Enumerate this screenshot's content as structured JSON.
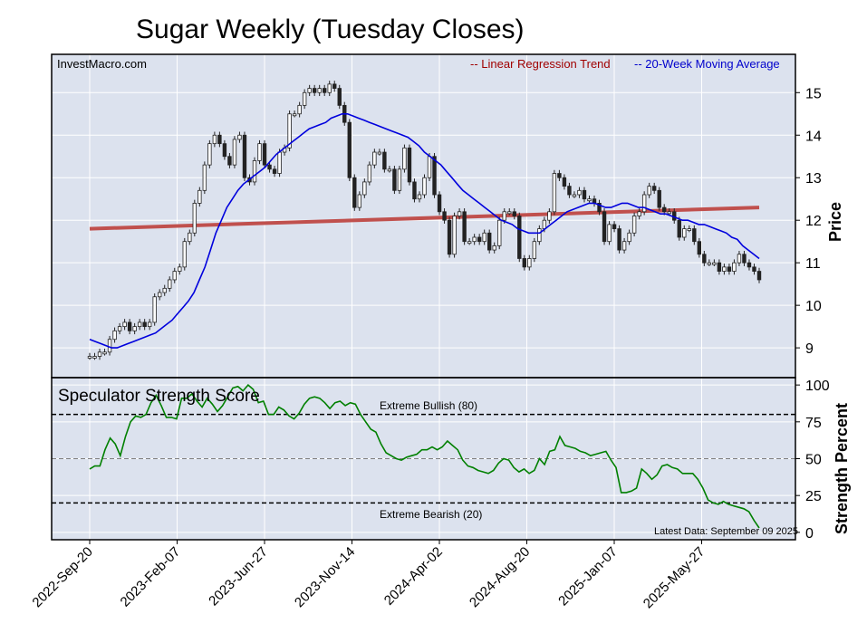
{
  "chart_data": {
    "type": "candlestick",
    "title": "Sugar Weekly (Tuesday Closes)",
    "source": "InvestMacro.com",
    "x_ticks": [
      "2022-Sep-20",
      "2023-Feb-07",
      "2023-Jun-27",
      "2023-Nov-14",
      "2024-Apr-02",
      "2024-Aug-20",
      "2025-Jan-07",
      "2025-May-27"
    ],
    "price_panel": {
      "ylabel": "Price",
      "yticks": [
        9,
        10,
        11,
        12,
        13,
        14,
        15
      ],
      "ylim": [
        8.3,
        15.9
      ],
      "legend": {
        "regression": "-- Linear Regression Trend",
        "moving_average": "-- 20-Week Moving Average"
      },
      "weekly_closes": [
        8.8,
        8.8,
        8.9,
        8.9,
        9.2,
        9.4,
        9.5,
        9.6,
        9.4,
        9.5,
        9.6,
        9.5,
        9.6,
        10.2,
        10.3,
        10.4,
        10.6,
        10.8,
        10.9,
        11.5,
        11.7,
        12.4,
        12.7,
        13.3,
        13.8,
        14.0,
        13.8,
        13.5,
        13.3,
        13.9,
        14.0,
        13.0,
        12.9,
        13.4,
        13.8,
        13.3,
        13.2,
        13.1,
        13.6,
        13.7,
        14.5,
        14.5,
        14.7,
        15.0,
        15.1,
        15.0,
        15.1,
        15.0,
        15.2,
        15.1,
        14.7,
        14.3,
        13.0,
        12.3,
        12.6,
        12.9,
        13.3,
        13.6,
        13.6,
        13.2,
        13.2,
        12.7,
        13.2,
        13.7,
        12.9,
        12.5,
        12.6,
        13.0,
        13.5,
        12.6,
        12.2,
        12.0,
        11.2,
        12.1,
        12.2,
        11.5,
        11.5,
        11.6,
        11.5,
        11.7,
        11.3,
        11.4,
        12.0,
        12.2,
        12.2,
        12.1,
        11.1,
        10.9,
        11.1,
        11.5,
        11.8,
        12.0,
        12.2,
        13.1,
        13.0,
        12.8,
        12.6,
        12.6,
        12.7,
        12.5,
        12.5,
        12.4,
        12.2,
        11.5,
        11.9,
        11.8,
        11.3,
        11.5,
        11.7,
        12.1,
        12.2,
        12.6,
        12.8,
        12.7,
        12.3,
        12.2,
        12.2,
        12.0,
        11.6,
        11.8,
        11.8,
        11.5,
        11.2,
        11.0,
        11.0,
        11.0,
        10.8,
        10.9,
        10.8,
        11.0,
        11.2,
        11.0,
        10.9,
        10.8,
        10.6
      ],
      "moving_average": [
        9.2,
        9.15,
        9.1,
        9.05,
        9.0,
        9.0,
        9.05,
        9.1,
        9.15,
        9.2,
        9.25,
        9.3,
        9.35,
        9.45,
        9.55,
        9.65,
        9.8,
        9.95,
        10.1,
        10.3,
        10.6,
        10.9,
        11.3,
        11.7,
        12.0,
        12.3,
        12.5,
        12.7,
        12.85,
        12.95,
        13.05,
        13.15,
        13.25,
        13.4,
        13.55,
        13.65,
        13.75,
        13.85,
        13.95,
        14.05,
        14.15,
        14.2,
        14.25,
        14.3,
        14.4,
        14.45,
        14.5,
        14.5,
        14.45,
        14.4,
        14.35,
        14.3,
        14.25,
        14.2,
        14.15,
        14.1,
        14.05,
        14.0,
        13.95,
        13.85,
        13.75,
        13.6,
        13.5,
        13.4,
        13.3,
        13.15,
        13.0,
        12.85,
        12.7,
        12.6,
        12.5,
        12.4,
        12.3,
        12.2,
        12.1,
        12.0,
        11.95,
        11.9,
        11.8,
        11.75,
        11.7,
        11.7,
        11.7,
        11.8,
        11.9,
        12.0,
        12.1,
        12.2,
        12.25,
        12.3,
        12.35,
        12.4,
        12.4,
        12.35,
        12.3,
        12.3,
        12.35,
        12.4,
        12.4,
        12.35,
        12.3,
        12.3,
        12.25,
        12.2,
        12.15,
        12.15,
        12.1,
        12.05,
        12.0,
        12.0,
        11.95,
        11.9,
        11.9,
        11.85,
        11.8,
        11.75,
        11.7,
        11.6,
        11.55,
        11.4,
        11.3,
        11.2,
        11.1
      ],
      "regression": {
        "start": 11.8,
        "end": 12.3
      }
    },
    "strength_panel": {
      "title": "Speculator Strength Score",
      "ylabel": "Strength Percent",
      "yticks": [
        0,
        25,
        50,
        75,
        100
      ],
      "ylim": [
        -5,
        105
      ],
      "lines": [
        {
          "value": 80,
          "label": "Extreme Bullish (80)"
        },
        {
          "value": 50,
          "label": ""
        },
        {
          "value": 20,
          "label": "Extreme Bearish (20)"
        }
      ],
      "latest": "Latest Data: September 09 2025",
      "values": [
        43,
        45,
        45,
        56,
        64,
        60,
        52,
        65,
        75,
        79,
        78,
        80,
        88,
        93,
        86,
        78,
        78,
        77,
        91,
        91,
        94,
        89,
        85,
        91,
        87,
        82,
        86,
        92,
        98,
        99,
        96,
        100,
        97,
        88,
        89,
        80,
        80,
        85,
        83,
        79,
        77,
        81,
        87,
        91,
        92,
        91,
        88,
        84,
        88,
        89,
        86,
        88,
        87,
        80,
        75,
        70,
        68,
        60,
        54,
        52,
        50,
        49,
        51,
        52,
        53,
        56,
        56,
        58,
        56,
        58,
        62,
        59,
        56,
        49,
        45,
        44,
        42,
        41,
        40,
        42,
        47,
        50,
        49,
        44,
        41,
        43,
        40,
        42,
        50,
        46,
        55,
        56,
        65,
        59,
        58,
        57,
        55,
        54,
        52,
        53,
        54,
        55,
        49,
        44,
        27,
        27,
        28,
        30,
        43,
        40,
        36,
        39,
        45,
        46,
        44,
        43,
        40,
        40,
        40,
        36,
        30,
        22,
        20,
        19,
        21,
        19,
        18,
        17,
        16,
        14,
        8,
        3
      ]
    }
  }
}
